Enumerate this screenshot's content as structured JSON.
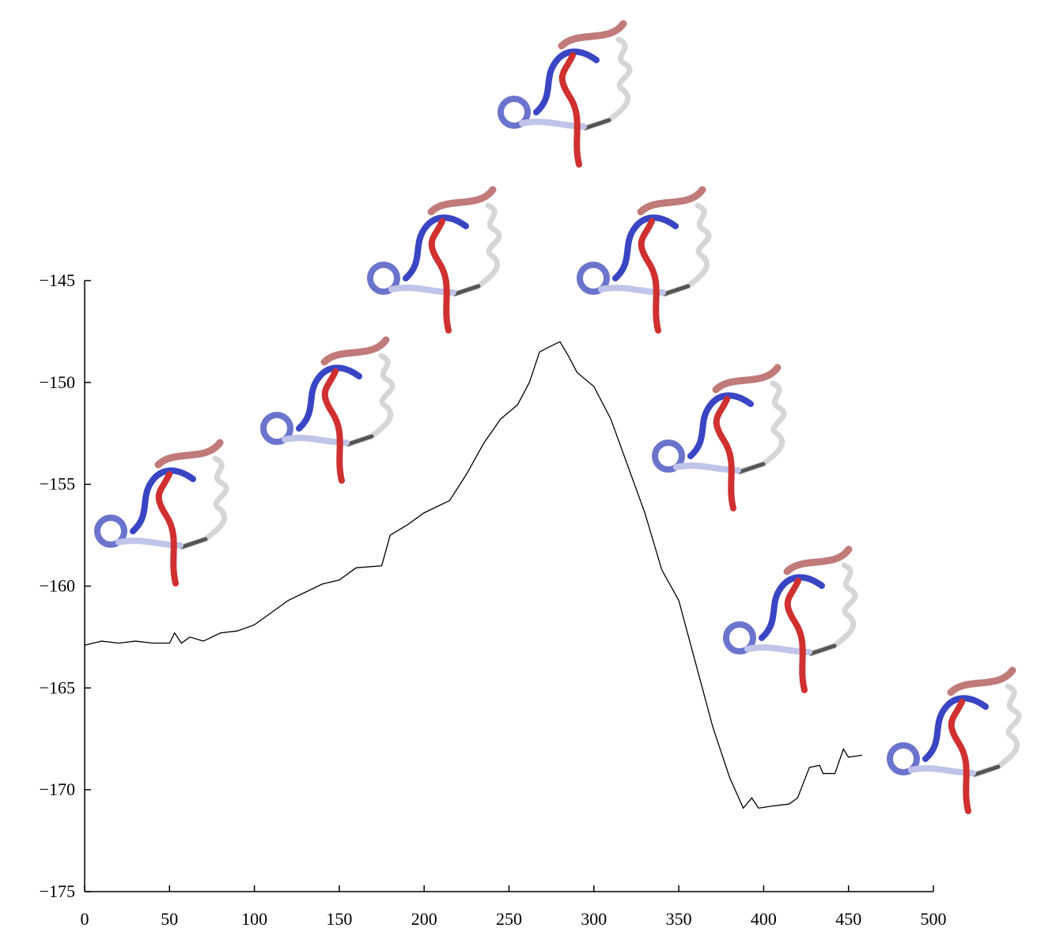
{
  "chart_data": {
    "type": "line",
    "x": [
      0,
      10,
      20,
      30,
      40,
      50,
      53,
      57,
      62,
      70,
      80,
      90,
      100,
      110,
      120,
      130,
      140,
      150,
      160,
      175,
      180,
      190,
      200,
      215,
      225,
      235,
      245,
      255,
      262,
      268,
      275,
      280,
      285,
      290,
      300,
      310,
      320,
      330,
      340,
      350,
      360,
      370,
      380,
      388,
      393,
      397,
      405,
      415,
      420,
      427,
      433,
      435,
      442,
      447,
      450,
      458
    ],
    "series": [
      {
        "color": "#000000",
        "values": [
          -162.9,
          -162.7,
          -162.8,
          -162.7,
          -162.8,
          -162.8,
          -162.3,
          -162.8,
          -162.5,
          -162.7,
          -162.3,
          -162.2,
          -161.9,
          -161.3,
          -160.7,
          -160.3,
          -159.9,
          -159.7,
          -159.1,
          -159.0,
          -157.5,
          -157.0,
          -156.4,
          -155.8,
          -154.5,
          -153.0,
          -151.8,
          -151.1,
          -150.0,
          -148.5,
          -148.2,
          -148.0,
          -148.7,
          -149.5,
          -150.2,
          -151.8,
          -154.1,
          -156.4,
          -159.2,
          -160.7,
          -163.8,
          -166.9,
          -169.4,
          -170.9,
          -170.4,
          -170.9,
          -170.8,
          -170.7,
          -170.4,
          -168.9,
          -168.8,
          -169.2,
          -169.2,
          -168.0,
          -168.4,
          -168.3
        ]
      }
    ],
    "xlim": [
      0,
      500
    ],
    "xticks": [
      0,
      50,
      100,
      150,
      200,
      250,
      300,
      350,
      400,
      450,
      500
    ],
    "ylim": [
      -175,
      -145
    ],
    "yticks": [
      {
        "value": -175,
        "label": "−175"
      },
      {
        "value": -170,
        "label": "−170"
      },
      {
        "value": -165,
        "label": "−165"
      },
      {
        "value": -160,
        "label": "−160"
      },
      {
        "value": -155,
        "label": "−155"
      },
      {
        "value": -150,
        "label": "−150"
      },
      {
        "value": -145,
        "label": "−145"
      }
    ],
    "grid": false
  }
}
